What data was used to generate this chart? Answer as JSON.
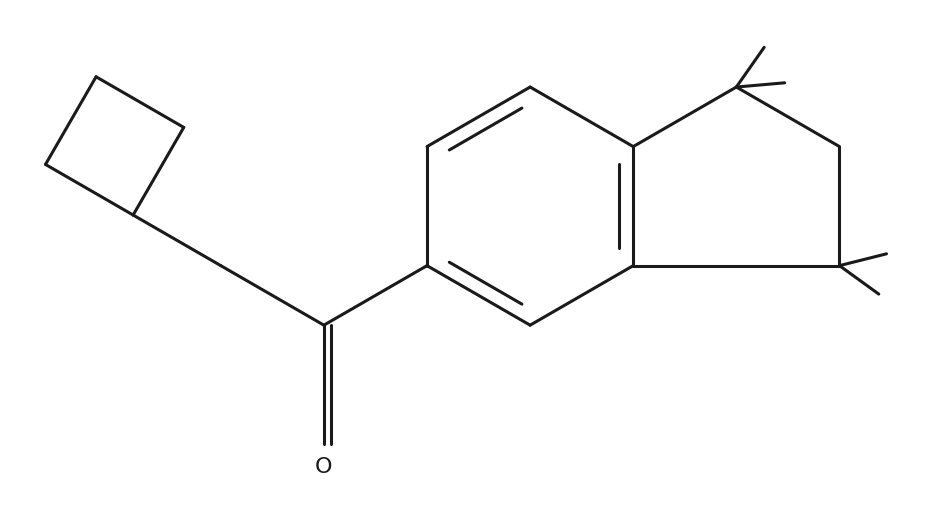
{
  "background_color": "#ffffff",
  "line_color": "#1a1a1a",
  "line_width": 2.2,
  "figsize": [
    9.32,
    5.18
  ],
  "dpi": 100
}
